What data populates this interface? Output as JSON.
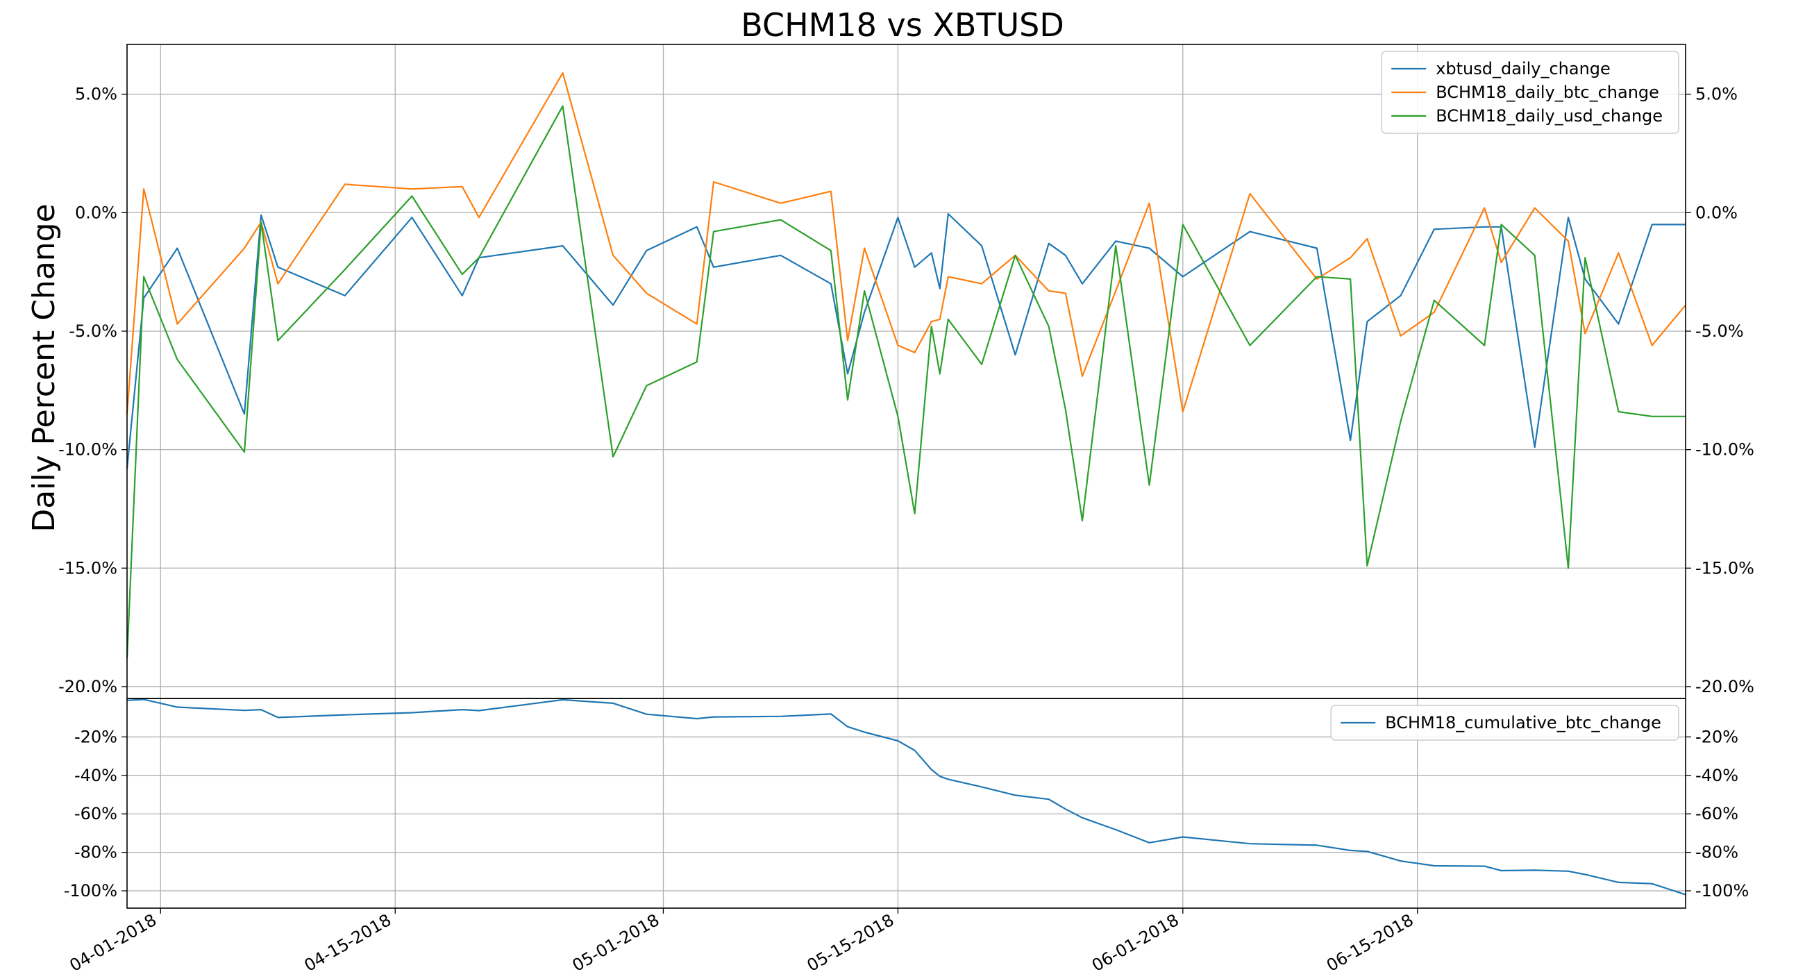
{
  "chart_data": [
    {
      "type": "line",
      "title": "BCHM18 vs XBTUSD",
      "ylabel": "Daily Percent Change",
      "xlabel": "",
      "ylim": [
        -20.5,
        7.1
      ],
      "yticks": [
        5,
        0,
        -5,
        -10,
        -15,
        -20
      ],
      "ytick_labels": [
        "5.0%",
        "0.0%",
        "-5.0%",
        "-10.0%",
        "-15.0%",
        "-20.0%"
      ],
      "y_right_duplicate": true,
      "grid": true,
      "legend_position": "top-right",
      "series": [
        {
          "name": "xbtusd_daily_change",
          "color": "#1f77b4",
          "x": [
            "2018-03-30",
            "2018-03-31",
            "2018-04-02",
            "2018-04-06",
            "2018-04-07",
            "2018-04-08",
            "2018-04-12",
            "2018-04-16",
            "2018-04-19",
            "2018-04-20",
            "2018-04-25",
            "2018-04-28",
            "2018-04-30",
            "2018-05-03",
            "2018-05-04",
            "2018-05-08",
            "2018-05-11",
            "2018-05-12",
            "2018-05-13",
            "2018-05-15",
            "2018-05-16",
            "2018-05-17",
            "2018-05-17T12",
            "2018-05-18",
            "2018-05-20",
            "2018-05-22",
            "2018-05-24",
            "2018-05-25",
            "2018-05-26",
            "2018-05-28",
            "2018-05-30",
            "2018-06-01",
            "2018-06-05",
            "2018-06-09",
            "2018-06-11",
            "2018-06-12",
            "2018-06-14",
            "2018-06-16",
            "2018-06-19",
            "2018-06-20",
            "2018-06-22",
            "2018-06-24",
            "2018-06-25",
            "2018-06-27",
            "2018-06-29",
            "2018-07-01"
          ],
          "values": [
            -10.8,
            -3.6,
            -1.5,
            -8.5,
            -0.1,
            -2.3,
            -3.5,
            -0.2,
            -3.5,
            -1.9,
            -1.4,
            -3.9,
            -1.6,
            -0.6,
            -2.3,
            -1.8,
            -3.0,
            -6.8,
            -4.2,
            -0.2,
            -2.3,
            -1.7,
            -3.2,
            -0.05,
            -1.4,
            -6.0,
            -1.3,
            -1.8,
            -3.0,
            -1.2,
            -1.5,
            -2.7,
            -0.8,
            -1.5,
            -9.6,
            -4.6,
            -3.5,
            -0.7,
            -0.6,
            -0.6,
            -9.9,
            -0.2,
            -2.8,
            -4.7,
            -0.5,
            -0.5
          ],
          "values_note": ""
        },
        {
          "name": "BCHM18_daily_btc_change",
          "color": "#ff7f0e",
          "x": [],
          "values": []
        },
        {
          "name": "BCHM18_daily_usd_change",
          "color": "#2ca02c",
          "x": [],
          "values": []
        }
      ]
    },
    {
      "type": "line",
      "title": "",
      "ylabel": "",
      "ylim": [
        -109,
        0
      ],
      "yticks": [
        -20,
        -40,
        -60,
        -80,
        -100
      ],
      "ytick_labels": [
        "-20%",
        "-40%",
        "-60%",
        "-80%",
        "-100%"
      ],
      "y_right_duplicate": true,
      "grid": true,
      "legend_position": "top-right",
      "series": [
        {
          "name": "BCHM18_cumulative_btc_change",
          "color": "#1f77b4",
          "x": [],
          "values": []
        }
      ]
    }
  ],
  "x_axis": {
    "tick_labels": [
      "04-01-2018",
      "04-15-2018",
      "05-01-2018",
      "05-15-2018",
      "06-01-2018",
      "06-15-2018"
    ],
    "tick_dates": [
      "2018-04-01",
      "2018-04-15",
      "2018-05-01",
      "2018-05-15",
      "2018-06-01",
      "2018-06-15"
    ],
    "range": [
      "2018-03-30",
      "2018-07-01"
    ]
  }
}
